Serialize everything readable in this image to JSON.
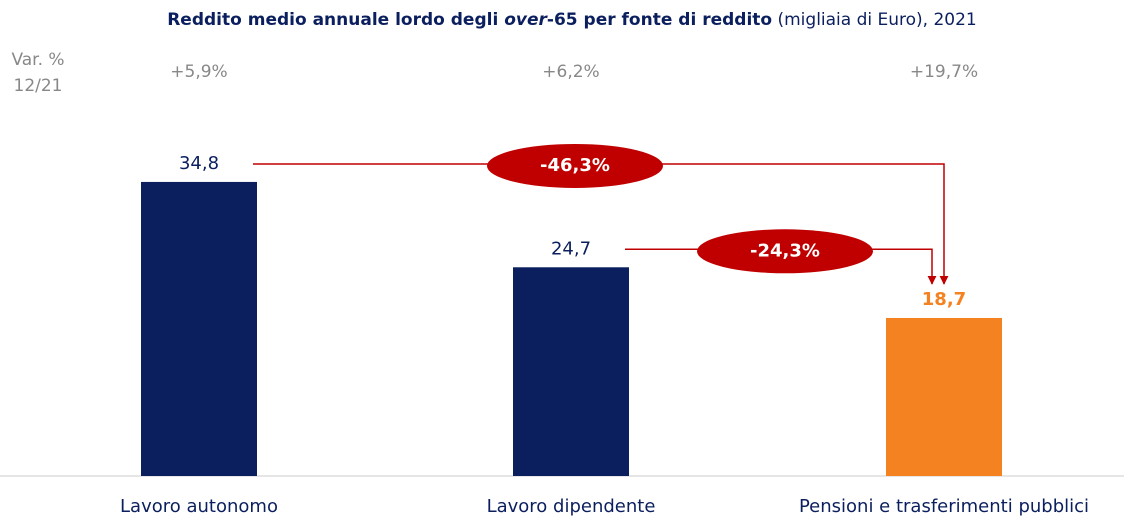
{
  "chart_data": {
    "type": "bar",
    "title": [
      "Reddito medio annuale lordo degli ",
      "over",
      "-65 per fonte di reddito",
      " (migliaia di Euro), 2021"
    ],
    "categories": [
      "Lavoro autonomo",
      "Lavoro dipendente",
      "Pensioni e trasferimenti pubblici"
    ],
    "values": [
      34.8,
      24.7,
      18.7
    ],
    "value_labels": [
      "34,8",
      "24,7",
      "18,7"
    ],
    "colors": [
      "#0b1f5e",
      "#0b1f5e",
      "#f58220"
    ],
    "ylim": [
      0,
      40
    ],
    "change_title": [
      "Var. %",
      "12/21"
    ],
    "changes": [
      5.9,
      6.2,
      19.7
    ],
    "change_labels": [
      "+5,9%",
      "+6,2%",
      "+19,7%"
    ],
    "comparisons": [
      {
        "value": -46.3,
        "label": "-46,3%"
      },
      {
        "value": -24.3,
        "label": "-24,3%"
      }
    ]
  }
}
